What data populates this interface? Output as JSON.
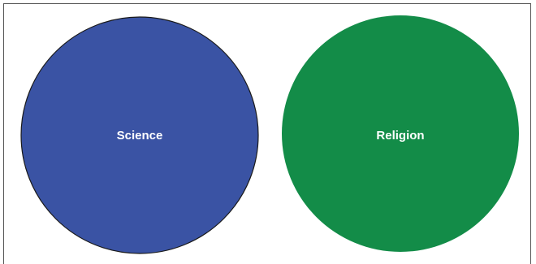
{
  "circles": [
    {
      "label": "Science",
      "color": "#3a53a4",
      "outline": "#1a1a1a"
    },
    {
      "label": "Religion",
      "color": "#138c48",
      "outline": "none"
    }
  ]
}
